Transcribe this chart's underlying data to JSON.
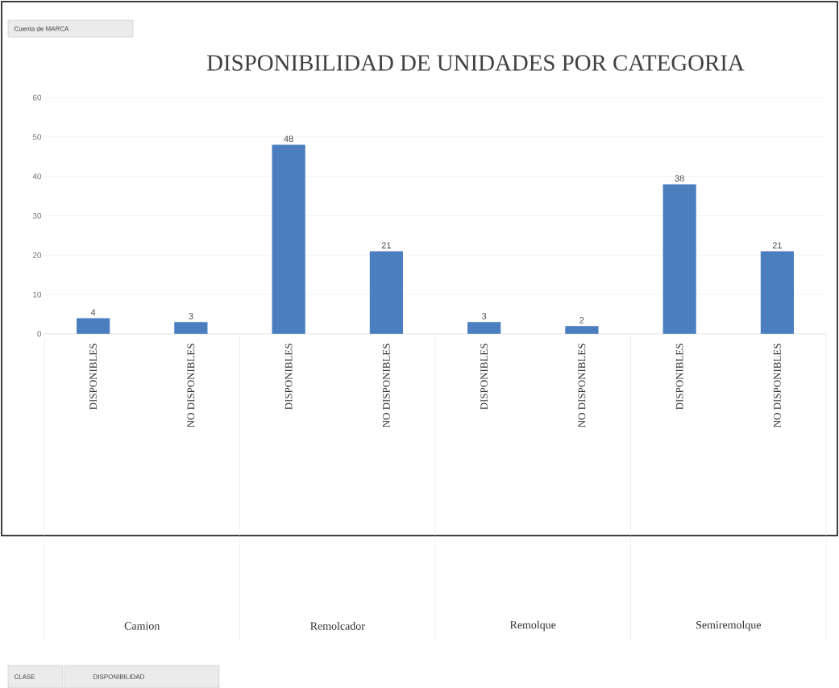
{
  "chart_data": {
    "type": "bar",
    "title": "DISPONIBILIDAD DE UNIDADES POR CATEGORIA",
    "categories": [
      "DISPONIBLES",
      "NO DISPONIBLES",
      "DISPONIBLES",
      "NO DISPONIBLES",
      "DISPONIBLES",
      "NO DISPONIBLES",
      "DISPONIBLES",
      "NO DISPONIBLES"
    ],
    "values": [
      4,
      3,
      48,
      21,
      3,
      2,
      38,
      21
    ],
    "color": "#4a7ebf",
    "ylim": [
      0,
      60
    ],
    "yticks": [
      0,
      10,
      20,
      30,
      40,
      50,
      60
    ],
    "grid": "y",
    "data_labels": true,
    "annotations": [
      "Camion",
      "Remolcador",
      "Remolque",
      "Semiremolque",
      "Cuenta de MARCA",
      "CLASE",
      "DISPONIBILIDAD"
    ]
  }
}
